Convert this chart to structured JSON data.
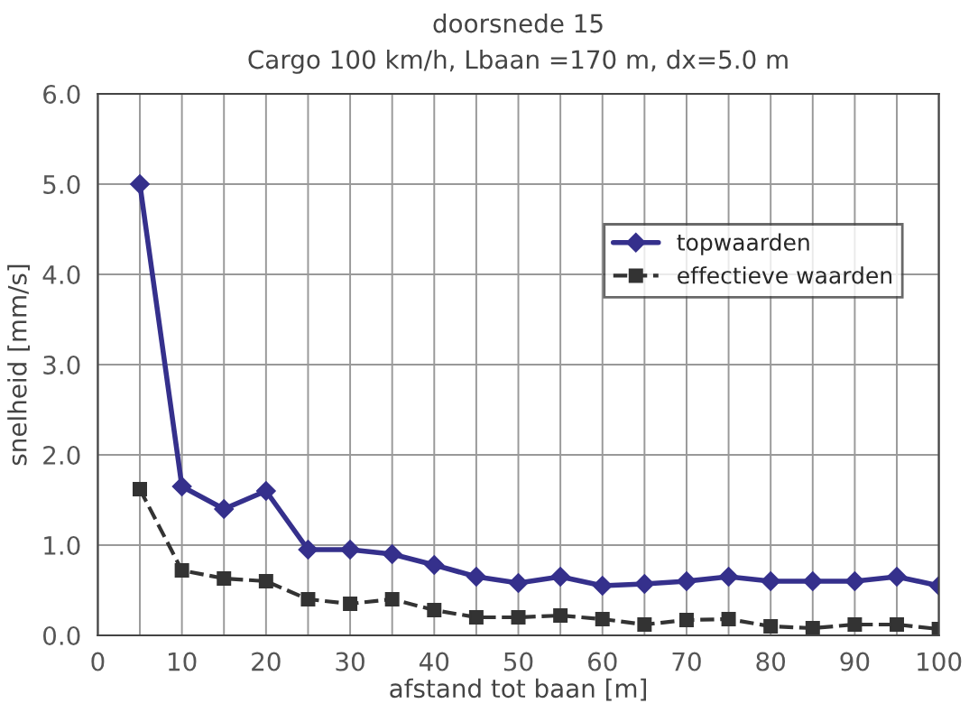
{
  "chart_data": {
    "type": "line",
    "title": "doorsnede 15",
    "subtitle": "Cargo 100 km/h, Lbaan =170 m, dx=5.0 m",
    "xlabel": "afstand tot baan [m]",
    "ylabel": "snelheid [mm/s]",
    "x": [
      5,
      10,
      15,
      20,
      25,
      30,
      35,
      40,
      45,
      50,
      55,
      60,
      65,
      70,
      75,
      80,
      85,
      90,
      95,
      100
    ],
    "series": [
      {
        "name": "topwaarden",
        "color": "#35308c",
        "marker": "diamond",
        "line_style": "solid",
        "values": [
          5.0,
          1.65,
          1.4,
          1.6,
          0.95,
          0.95,
          0.9,
          0.78,
          0.65,
          0.58,
          0.65,
          0.55,
          0.57,
          0.6,
          0.65,
          0.6,
          0.6,
          0.6,
          0.65,
          0.55
        ]
      },
      {
        "name": "effectieve waarden",
        "color": "#333333",
        "marker": "square",
        "line_style": "dashed",
        "values": [
          1.62,
          0.72,
          0.63,
          0.6,
          0.4,
          0.35,
          0.4,
          0.28,
          0.2,
          0.2,
          0.22,
          0.18,
          0.12,
          0.17,
          0.18,
          0.1,
          0.08,
          0.12,
          0.12,
          0.07
        ]
      }
    ],
    "xlim": [
      0,
      100
    ],
    "xticks": [
      0,
      10,
      20,
      30,
      40,
      50,
      60,
      70,
      80,
      90,
      100
    ],
    "ylim": [
      0,
      6
    ],
    "yticks": [
      {
        "value": 0,
        "label": "0.0"
      },
      {
        "value": 1,
        "label": "1.0"
      },
      {
        "value": 2,
        "label": "2.0"
      },
      {
        "value": 3,
        "label": "3.0"
      },
      {
        "value": 4,
        "label": "4.0"
      },
      {
        "value": 5,
        "label": "5.0"
      },
      {
        "value": 6,
        "label": "6.0"
      }
    ],
    "grid": true,
    "legend": "top right"
  }
}
